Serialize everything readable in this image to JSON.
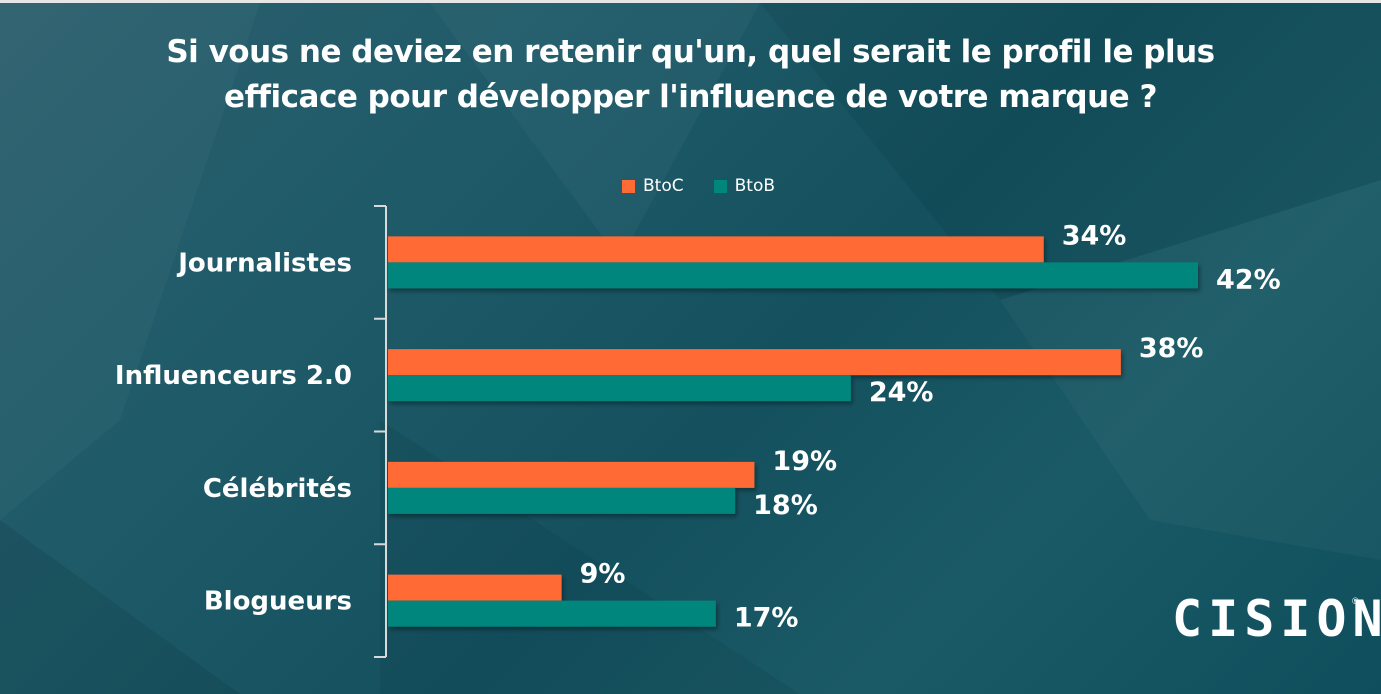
{
  "chart_data": {
    "type": "bar",
    "orientation": "horizontal",
    "title": "Si vous ne deviez en retenir qu'un, quel serait le profil le plus efficace pour développer l'influence de votre marque ?",
    "title_lines": [
      "Si vous ne deviez en retenir qu'un, quel serait le profil le plus",
      "efficace pour développer l'influence de votre marque ?"
    ],
    "categories": [
      "Journalistes",
      "Influenceurs 2.0",
      "Célébrités",
      "Blogueurs"
    ],
    "series": [
      {
        "name": "BtoC",
        "color": "#ff6b35",
        "values": [
          34,
          38,
          19,
          9
        ],
        "labels": [
          "34%",
          "38%",
          "19%",
          "9%"
        ]
      },
      {
        "name": "BtoB",
        "color": "#00867d",
        "values": [
          42,
          24,
          18,
          17
        ],
        "labels": [
          "42%",
          "24%",
          "18%",
          "17%"
        ]
      }
    ],
    "xlim": [
      0,
      42
    ],
    "unit": "%",
    "legend": "top-center",
    "grid": false,
    "xlabel": "",
    "ylabel": ""
  },
  "brand": {
    "name": "CISION",
    "registered": "®"
  }
}
